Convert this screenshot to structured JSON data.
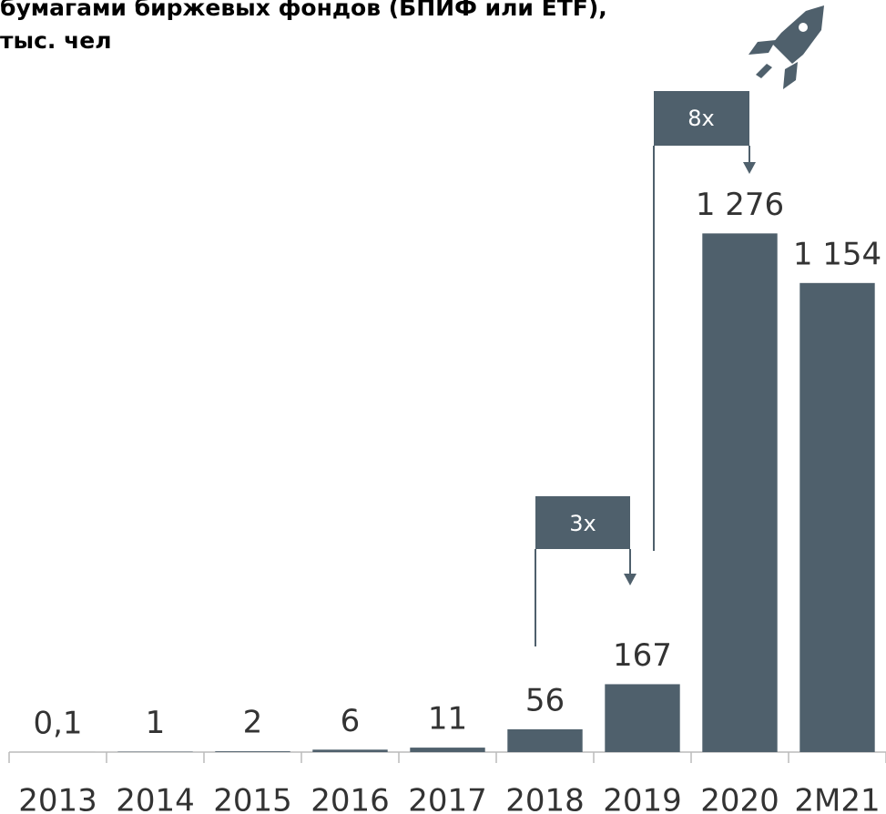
{
  "chart_data": {
    "type": "bar",
    "title": [
      "бумагами биржевых фондов (БПИФ или ETF),",
      "тыс. чел"
    ],
    "categories": [
      "2013",
      "2014",
      "2015",
      "2016",
      "2017",
      "2018",
      "2019",
      "2020",
      "2M21"
    ],
    "values": [
      0.1,
      1,
      2,
      6,
      11,
      56,
      167,
      1276,
      1154
    ],
    "value_labels": [
      "0,1",
      "1",
      "2",
      "6",
      "11",
      "56",
      "167",
      "1 276",
      "1 154"
    ],
    "annotations": [
      "3x",
      "8x"
    ],
    "color": "#4f606c",
    "ylim": [
      0,
      1400
    ]
  }
}
